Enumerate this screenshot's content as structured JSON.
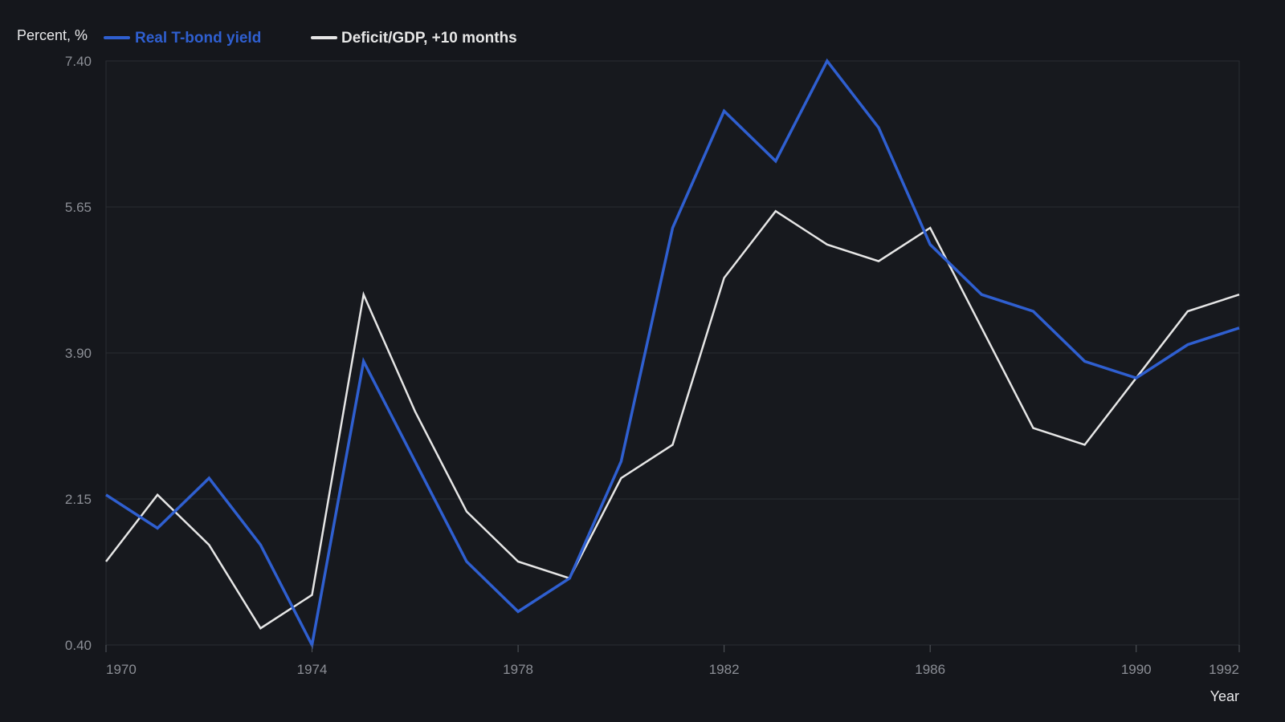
{
  "chart_data": {
    "type": "line",
    "ylabel": "Percent, %",
    "xlabel": "Year",
    "ylim": [
      0.4,
      7.4
    ],
    "xlim": [
      1970,
      1992
    ],
    "yticks": [
      "0.40",
      "2.15",
      "3.90",
      "5.65",
      "7.40"
    ],
    "xticks": [
      "1970",
      "1974",
      "1978",
      "1982",
      "1986",
      "1990",
      "1992"
    ],
    "grid": true,
    "legend_position": "top-left",
    "x": [
      1970,
      1971,
      1972,
      1973,
      1974,
      1975,
      1976,
      1977,
      1978,
      1979,
      1980,
      1981,
      1982,
      1983,
      1984,
      1985,
      1986,
      1987,
      1988,
      1989,
      1990,
      1991,
      1992
    ],
    "series": [
      {
        "name": "Real T-bond yield",
        "color": "#2f5fd0",
        "values": [
          2.2,
          1.8,
          2.4,
          1.6,
          0.4,
          3.8,
          2.6,
          1.4,
          0.8,
          1.2,
          2.6,
          5.4,
          6.8,
          6.2,
          7.4,
          6.6,
          5.2,
          4.6,
          4.4,
          3.8,
          3.6,
          4.0,
          4.2
        ]
      },
      {
        "name": "Deficit/GDP, +10 months",
        "color": "#e6e6e6",
        "values": [
          1.4,
          2.2,
          1.6,
          0.6,
          1.0,
          4.6,
          3.2,
          2.0,
          1.4,
          1.2,
          2.4,
          2.8,
          4.8,
          5.6,
          5.2,
          5.0,
          5.4,
          4.2,
          3.0,
          2.8,
          3.6,
          4.4,
          4.6
        ]
      }
    ]
  }
}
